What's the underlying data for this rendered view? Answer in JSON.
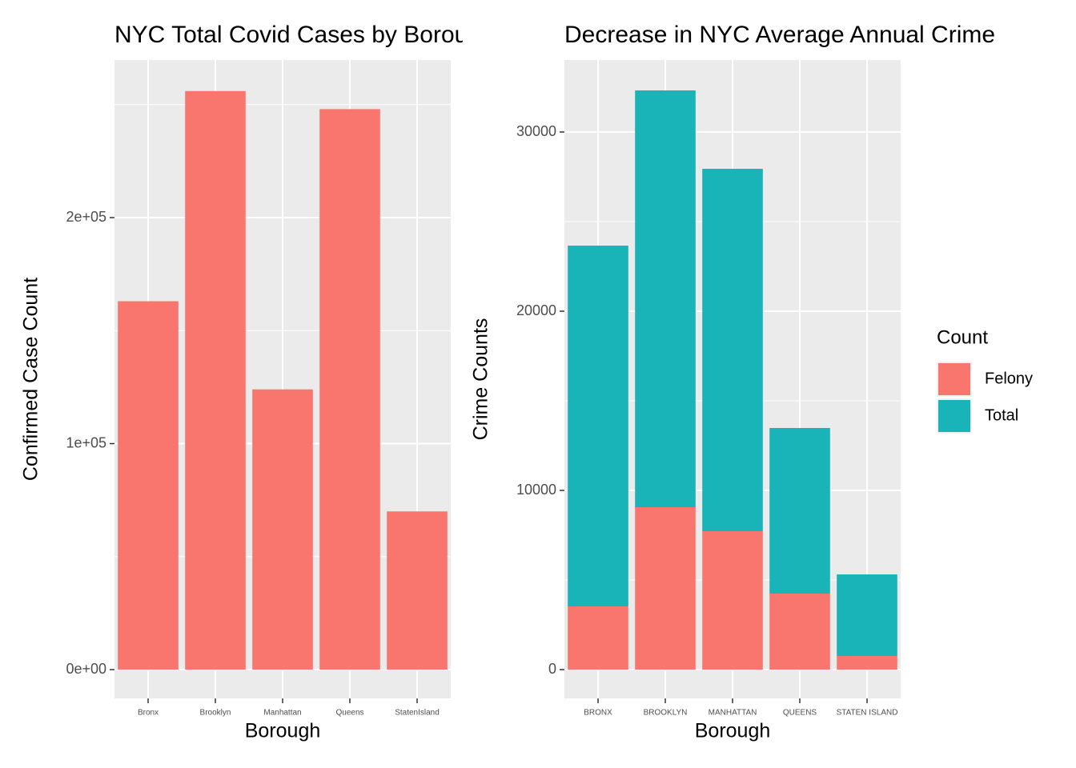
{
  "chart_data": [
    {
      "type": "bar",
      "title": "NYC Total Covid Cases by Borough",
      "x_label": "Borough",
      "y_label": "Confirmed Case Count",
      "categories": [
        "Bronx",
        "Brooklyn",
        "Manhattan",
        "Queens",
        "StatenIsland"
      ],
      "values": [
        163000,
        256000,
        124000,
        248000,
        70000
      ],
      "color": "#f8766d",
      "ylim": [
        -12743,
        269735
      ],
      "yticks": [
        {
          "value": 0,
          "label": "0e+00"
        },
        {
          "value": 100000,
          "label": "1e+05"
        },
        {
          "value": 200000,
          "label": "2e+05"
        }
      ],
      "minor_yticks": [
        50000,
        150000,
        250000
      ],
      "grid": true
    },
    {
      "type": "stacked_bar",
      "title": "Decrease in NYC Average Annual Crime",
      "x_label": "Borough",
      "y_label": "Crime Counts",
      "categories": [
        "BRONX",
        "BROOKLYN",
        "MANHATTAN",
        "QUEENS",
        "STATEN ISLAND"
      ],
      "series": [
        {
          "name": "Felony",
          "color": "#f8766d",
          "values": [
            3527,
            9063,
            7723,
            4241,
            759
          ]
        },
        {
          "name": "Total",
          "color": "#19b4b8",
          "values": [
            20133,
            23258,
            20223,
            9241,
            4554
          ]
        }
      ],
      "legend_title": "Count",
      "ylim": [
        -1607,
        34018
      ],
      "yticks": [
        0,
        10000,
        20000,
        30000
      ],
      "minor_yticks": [
        5000,
        15000,
        25000
      ],
      "grid": true
    }
  ]
}
